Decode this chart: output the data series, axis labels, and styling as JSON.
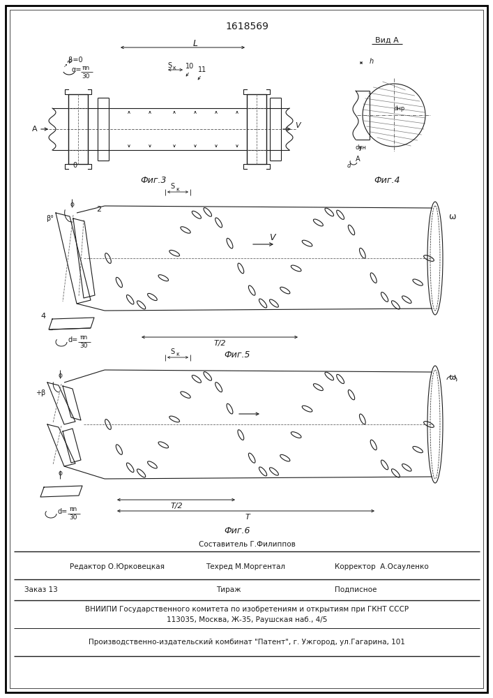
{
  "patent_number": "1618569",
  "line_color": "#1a1a1a",
  "fig3_label": "Фиг.3",
  "fig4_label": "Фиг.4",
  "fig5_label": "Фиг.5",
  "fig6_label": "Фиг.6",
  "footer_sestavitel": "Составитель Г.Филиппов",
  "footer_tekhred": "Техред М.Моргентал",
  "footer_redaktor": "Редактор О.Юрковецкая",
  "footer_korrektor": "Корректор  А.Осауленко",
  "footer_zakaz": "Заказ 13",
  "footer_tirazh": "Тираж",
  "footer_podpisnoe": "Подписное",
  "footer_vniip1": "ВНИИПИ Государственного комитета по изобретениям и открытиям при ГКНТ СССР",
  "footer_vniip2": "113035, Москва, Ж-35, Раушская наб., 4/5",
  "footer_kombinat": "Производственно-издательский комбинат \"Патент\", г. Ужгород, ул.Гагарина, 101"
}
